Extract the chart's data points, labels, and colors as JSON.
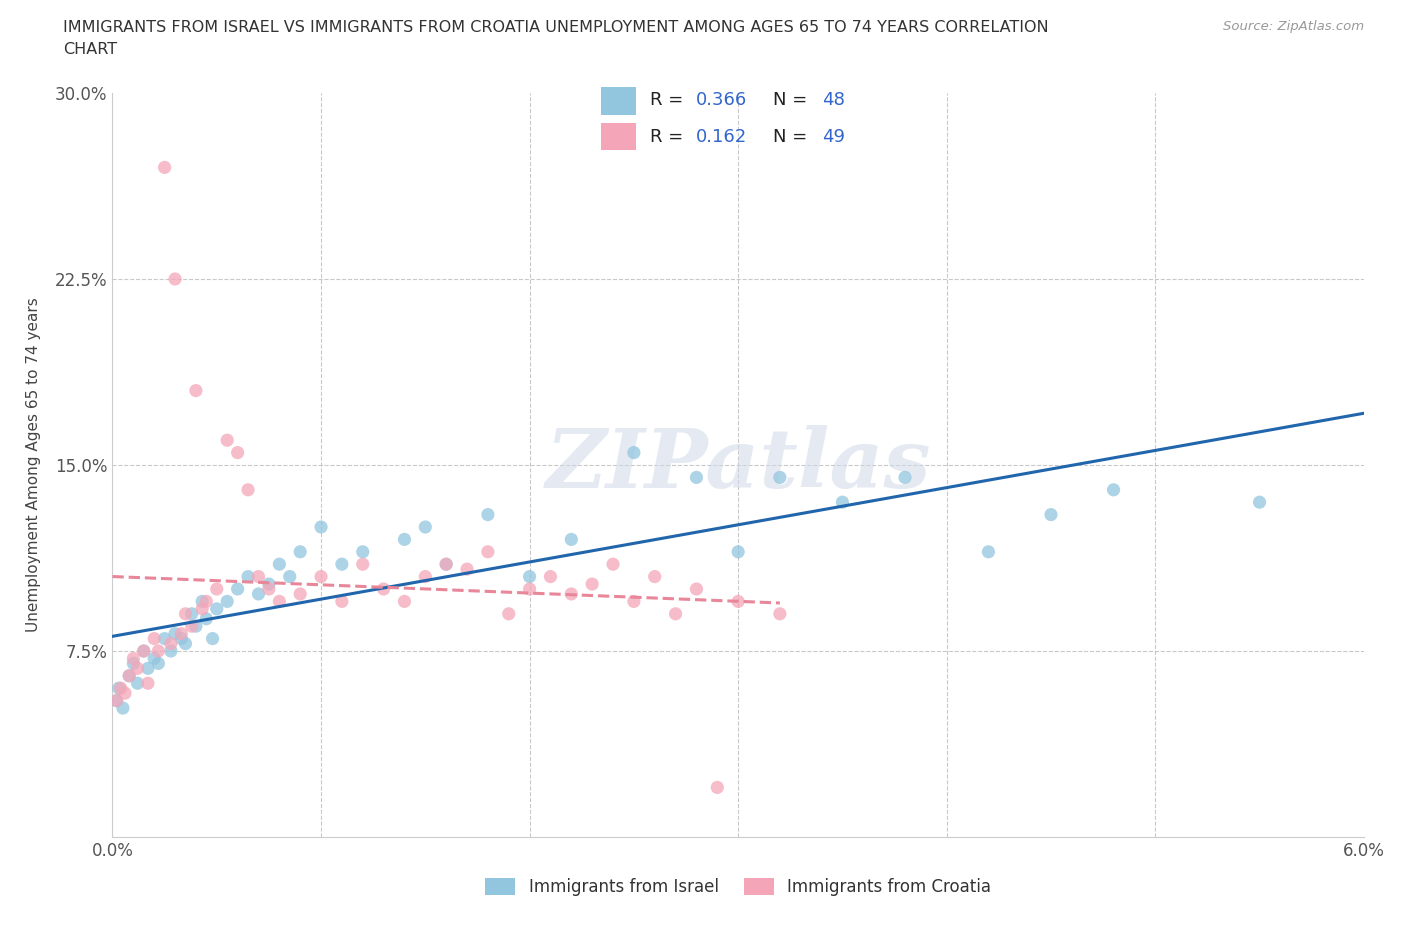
{
  "title_line1": "IMMIGRANTS FROM ISRAEL VS IMMIGRANTS FROM CROATIA UNEMPLOYMENT AMONG AGES 65 TO 74 YEARS CORRELATION",
  "title_line2": "CHART",
  "source": "Source: ZipAtlas.com",
  "ylabel_label": "Unemployment Among Ages 65 to 74 years",
  "x_min": 0.0,
  "x_max": 6.0,
  "y_min": 0.0,
  "y_max": 30.0,
  "israel_color": "#92c5de",
  "croatia_color": "#f4a6b8",
  "israel_line_color": "#2166ac",
  "croatia_line_color": "#e8869a",
  "R_israel": "0.366",
  "N_israel": "48",
  "R_croatia": "0.162",
  "N_croatia": "49",
  "legend_labels": [
    "Immigrants from Israel",
    "Immigrants from Croatia"
  ],
  "legend_R_color": "#000000",
  "legend_val_color": "#3366cc",
  "watermark_text": "ZIPatlas",
  "israel_x": [
    0.02,
    0.03,
    0.05,
    0.08,
    0.1,
    0.12,
    0.15,
    0.17,
    0.2,
    0.22,
    0.25,
    0.28,
    0.3,
    0.33,
    0.35,
    0.38,
    0.4,
    0.43,
    0.45,
    0.48,
    0.5,
    0.55,
    0.6,
    0.65,
    0.7,
    0.75,
    0.8,
    0.85,
    0.9,
    1.0,
    1.1,
    1.2,
    1.4,
    1.5,
    1.6,
    1.8,
    2.0,
    2.2,
    2.5,
    2.8,
    3.0,
    3.2,
    3.5,
    3.8,
    4.2,
    4.5,
    4.8,
    5.5
  ],
  "israel_y": [
    5.5,
    6.0,
    5.2,
    6.5,
    7.0,
    6.2,
    7.5,
    6.8,
    7.2,
    7.0,
    8.0,
    7.5,
    8.2,
    8.0,
    7.8,
    9.0,
    8.5,
    9.5,
    8.8,
    8.0,
    9.2,
    9.5,
    10.0,
    10.5,
    9.8,
    10.2,
    11.0,
    10.5,
    11.5,
    12.5,
    11.0,
    11.5,
    12.0,
    12.5,
    11.0,
    13.0,
    10.5,
    12.0,
    15.5,
    14.5,
    11.5,
    14.5,
    13.5,
    14.5,
    11.5,
    13.0,
    14.0,
    13.5
  ],
  "croatia_x": [
    0.02,
    0.04,
    0.06,
    0.08,
    0.1,
    0.12,
    0.15,
    0.17,
    0.2,
    0.22,
    0.25,
    0.28,
    0.3,
    0.33,
    0.35,
    0.38,
    0.4,
    0.43,
    0.45,
    0.5,
    0.55,
    0.6,
    0.65,
    0.7,
    0.75,
    0.8,
    0.9,
    1.0,
    1.1,
    1.2,
    1.3,
    1.4,
    1.5,
    1.6,
    1.7,
    1.8,
    1.9,
    2.0,
    2.1,
    2.2,
    2.3,
    2.4,
    2.5,
    2.6,
    2.7,
    2.8,
    2.9,
    3.0,
    3.2
  ],
  "croatia_y": [
    5.5,
    6.0,
    5.8,
    6.5,
    7.2,
    6.8,
    7.5,
    6.2,
    8.0,
    7.5,
    27.0,
    7.8,
    22.5,
    8.2,
    9.0,
    8.5,
    18.0,
    9.2,
    9.5,
    10.0,
    16.0,
    15.5,
    14.0,
    10.5,
    10.0,
    9.5,
    9.8,
    10.5,
    9.5,
    11.0,
    10.0,
    9.5,
    10.5,
    11.0,
    10.8,
    11.5,
    9.0,
    10.0,
    10.5,
    9.8,
    10.2,
    11.0,
    9.5,
    10.5,
    9.0,
    10.0,
    2.0,
    9.5,
    9.0
  ]
}
